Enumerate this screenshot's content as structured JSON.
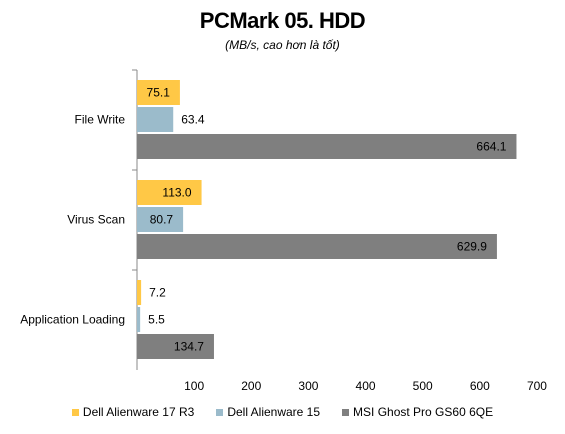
{
  "chart_data": {
    "type": "bar",
    "orientation": "horizontal",
    "title": "PCMark 05. HDD",
    "subtitle": "(MB/s, cao hơn là tốt)",
    "categories": [
      "File Write",
      "Virus Scan",
      "Application Loading"
    ],
    "series": [
      {
        "name": "Dell Alienware 17 R3",
        "color": "#FFC846",
        "values": [
          75.1,
          113.0,
          7.2
        ],
        "labels": [
          "75.1",
          "113.0",
          "7.2"
        ]
      },
      {
        "name": "Dell Alienware 15",
        "color": "#9BBBCB",
        "values": [
          63.4,
          80.7,
          5.5
        ],
        "labels": [
          "63.4",
          "80.7",
          "5.5"
        ]
      },
      {
        "name": "MSI Ghost Pro GS60 6QE",
        "color": "#7F7F7F",
        "values": [
          664.1,
          629.9,
          134.7
        ],
        "labels": [
          "664.1",
          "629.9",
          "134.7"
        ]
      }
    ],
    "xlim": [
      0,
      700
    ],
    "xticks": [
      "100",
      "200",
      "300",
      "400",
      "500",
      "600",
      "700"
    ],
    "xtick_values": [
      100,
      200,
      300,
      400,
      500,
      600,
      700
    ],
    "grid": false,
    "legend_position": "bottom"
  }
}
